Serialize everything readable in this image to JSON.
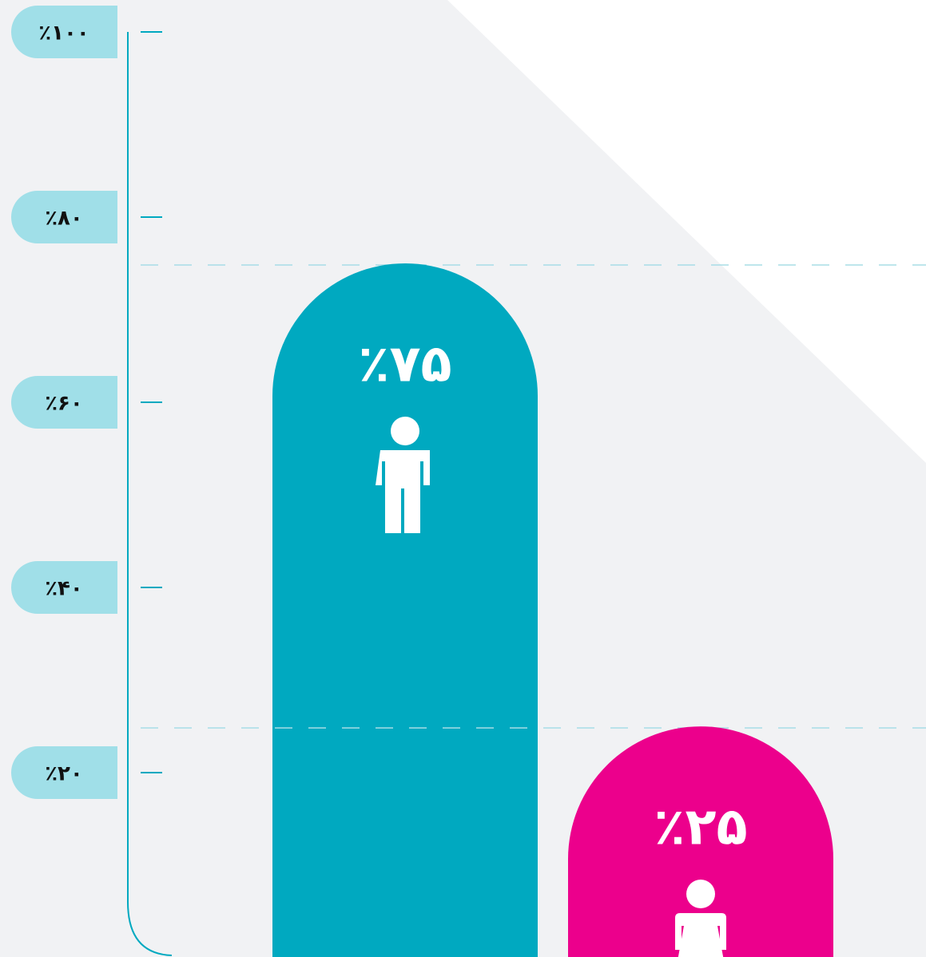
{
  "chart_data": {
    "type": "bar",
    "categories": [
      null,
      null
    ],
    "values": [
      75,
      25
    ],
    "value_labels": [
      "٪۷۵",
      "٪۲۵"
    ],
    "colors": [
      "#00a9c0",
      "#ec008c"
    ],
    "ylim": [
      0,
      100
    ],
    "yticks": [
      {
        "value": 20,
        "label": "٪۲۰"
      },
      {
        "value": 40,
        "label": "٪۴۰"
      },
      {
        "value": 60,
        "label": "٪۶۰"
      },
      {
        "value": 80,
        "label": "٪۸۰"
      },
      {
        "value": 100,
        "label": "٪۱۰۰"
      }
    ]
  }
}
